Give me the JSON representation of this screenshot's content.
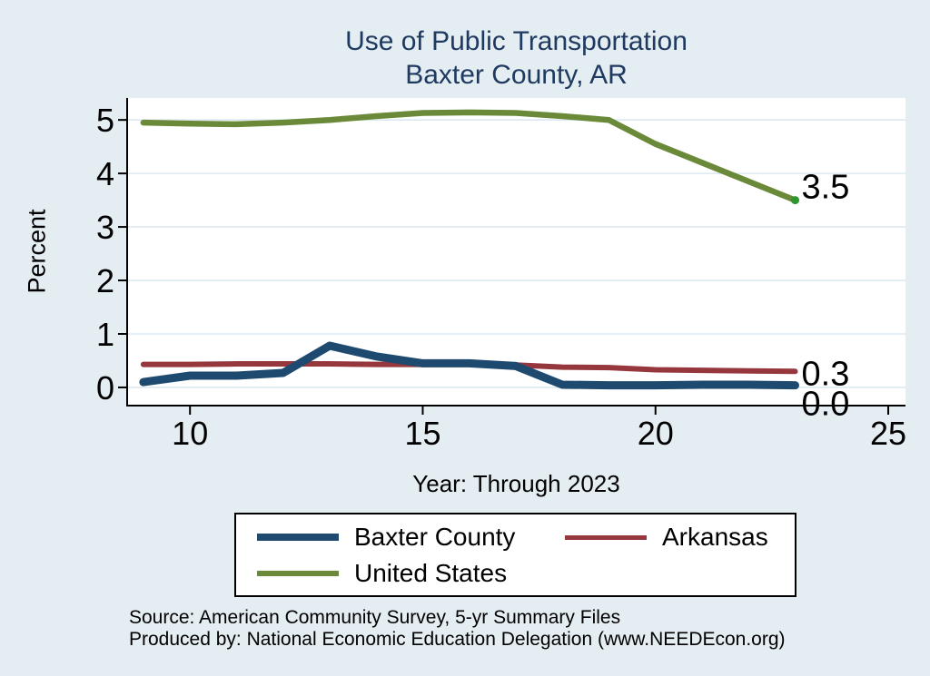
{
  "colors": {
    "background": "#e4edf2",
    "title": "#1f3a60",
    "plot_bg": "#ffffff",
    "gridline": "#dce8f0",
    "axis": "#000000",
    "tick_label": "#000000",
    "end_dot": "#2d962d"
  },
  "chart_data": {
    "type": "line",
    "title": "Use of Public Transportation",
    "subtitle": "Baxter County, AR",
    "xlabel": "Year: Through 2023",
    "ylabel": "Percent",
    "x": [
      9,
      10,
      11,
      12,
      13,
      14,
      15,
      16,
      17,
      18,
      19,
      20,
      21,
      22,
      23
    ],
    "xticks": [
      10,
      15,
      20,
      25
    ],
    "yticks": [
      0,
      1,
      2,
      3,
      4,
      5
    ],
    "xlim": [
      8.65,
      25.37
    ],
    "ylim": [
      -0.34,
      5.41
    ],
    "grid": "horizontal",
    "legend_position": "bottom",
    "series": [
      {
        "name": "Baxter County",
        "color": "#1e4a6f",
        "line_width": 9,
        "values": [
          0.1,
          0.22,
          0.22,
          0.27,
          0.78,
          0.58,
          0.45,
          0.45,
          0.4,
          0.05,
          0.04,
          0.04,
          0.05,
          0.05,
          0.04
        ],
        "end_label": "0.0",
        "end_dot": false
      },
      {
        "name": "Arkansas",
        "color": "#96373e",
        "line_width": 6,
        "values": [
          0.43,
          0.43,
          0.44,
          0.44,
          0.44,
          0.43,
          0.43,
          0.44,
          0.42,
          0.38,
          0.37,
          0.33,
          0.32,
          0.31,
          0.3
        ],
        "end_label": "0.3",
        "end_dot": false
      },
      {
        "name": "United States",
        "color": "#6a8a39",
        "line_width": 6.5,
        "values": [
          4.95,
          4.93,
          4.92,
          4.95,
          5.0,
          5.07,
          5.13,
          5.14,
          5.13,
          5.07,
          5.0,
          4.55,
          4.2,
          3.85,
          3.5
        ],
        "end_label": "3.5",
        "end_dot": true
      }
    ],
    "draw_order": [
      1,
      0,
      2
    ]
  },
  "notes": {
    "line1": "Source: American Community Survey, 5-yr Summary Files",
    "line2": "Produced by: National Economic Education Delegation (www.NEEDEcon.org)"
  }
}
